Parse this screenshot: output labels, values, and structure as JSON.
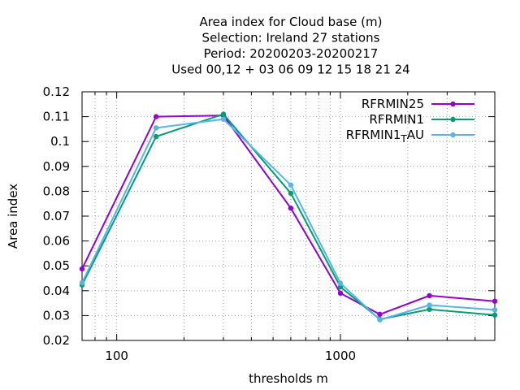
{
  "chart_data": {
    "type": "line",
    "title_lines": [
      "Area index  for Cloud base (m)",
      "Selection: Ireland      27 stations",
      "Period: 20200203-20200217",
      "Used  00,12  + 03 06 09 12 15 18 21 24"
    ],
    "xlabel": "thresholds m",
    "ylabel": "Area index",
    "x_scale": "log",
    "xlim": [
      70,
      4900
    ],
    "ylim": [
      0.02,
      0.12
    ],
    "x_ticks": [
      100,
      1000
    ],
    "x_tick_labels": [
      "100",
      "1000"
    ],
    "y_ticks": [
      0.02,
      0.03,
      0.04,
      0.05,
      0.06,
      0.07,
      0.08,
      0.09,
      0.1,
      0.11,
      0.12
    ],
    "y_tick_labels": [
      "0.02",
      "0.03",
      "0.04",
      "0.05",
      "0.06",
      "0.07",
      "0.08",
      "0.09",
      "0.1",
      "0.11",
      "0.12"
    ],
    "grid": true,
    "legend_position": "top-right",
    "x": [
      70,
      150,
      300,
      600,
      1000,
      1500,
      2500,
      4900
    ],
    "series": [
      {
        "name": "RFRMIN25",
        "color": "#9400d3",
        "values": [
          0.0488,
          0.11,
          0.1105,
          0.0732,
          0.039,
          0.0305,
          0.038,
          0.0358
        ]
      },
      {
        "name": "RFRMIN1",
        "color": "#009e73",
        "values": [
          0.0423,
          0.102,
          0.111,
          0.0792,
          0.0415,
          0.0285,
          0.0325,
          0.0302
        ]
      },
      {
        "name": "RFRMIN1_TAU",
        "color": "#56b4e9",
        "values": [
          0.0432,
          0.1055,
          0.109,
          0.0825,
          0.043,
          0.0283,
          0.0342,
          0.0323
        ]
      }
    ]
  }
}
